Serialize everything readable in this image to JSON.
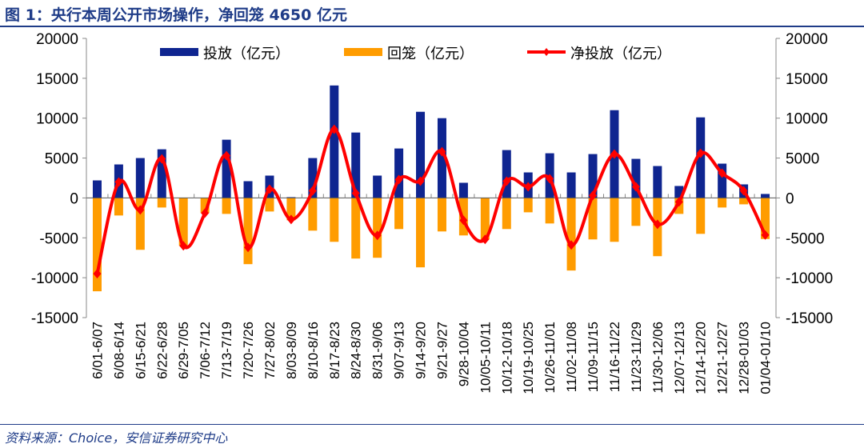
{
  "title": "图 1：央行本周公开市场操作，净回笼 4650 亿元",
  "source": "资料来源：Choice，安信证券研究中心",
  "colors": {
    "issuance": "#0f2590",
    "withdrawal": "#ff9c00",
    "net": "#ff0000",
    "title": "#1f3c88"
  },
  "chart_data": {
    "type": "bar",
    "title": "图 1：央行本周公开市场操作，净回笼 4650 亿元",
    "categories": [
      "6/01-6/07",
      "6/08-6/14",
      "6/15-6/21",
      "6/22-6/28",
      "6/29-7/05",
      "7/06-7/12",
      "7/13-7/19",
      "7/20-7/26",
      "7/27-8/02",
      "8/03-8/09",
      "8/10-8/16",
      "8/17-8/23",
      "8/24-8/30",
      "8/31-9/06",
      "9/07-9/13",
      "9/14-9/20",
      "9/21-9/27",
      "9/28-10/04",
      "10/05-10/11",
      "10/12-10/18",
      "10/19-10/25",
      "10/26-11/01",
      "11/02-11/08",
      "11/09-11/15",
      "11/16-11/22",
      "11/23-11/29",
      "11/30-12/06",
      "12/07-12/13",
      "12/14-12/20",
      "12/21-12/27",
      "12/28-01/03",
      "01/04-01/10"
    ],
    "series": [
      {
        "name": "投放（亿元）",
        "type": "bar",
        "values": [
          2200,
          4200,
          5000,
          6100,
          0,
          0,
          7300,
          2100,
          2800,
          100,
          5000,
          14100,
          8200,
          2800,
          6200,
          10800,
          10000,
          1900,
          0,
          6000,
          3200,
          5600,
          3200,
          5500,
          11000,
          4900,
          4000,
          1500,
          10100,
          4300,
          1700,
          500
        ]
      },
      {
        "name": "回笼（亿元）",
        "type": "bar",
        "values": [
          -11700,
          -2200,
          -6500,
          -1200,
          -6000,
          -1900,
          -2000,
          -8300,
          -1700,
          -2800,
          -4100,
          -5500,
          -7600,
          -7500,
          -3900,
          -8700,
          -4200,
          -4700,
          -5200,
          -3900,
          -1800,
          -3200,
          -9100,
          -5200,
          -5500,
          -3500,
          -7300,
          -2000,
          -4500,
          -1200,
          -800,
          -5150
        ]
      },
      {
        "name": "净投放（亿元）",
        "type": "line",
        "values": [
          -9500,
          2000,
          -1500,
          4900,
          -6000,
          -1900,
          5300,
          -6200,
          1100,
          -2700,
          900,
          8600,
          600,
          -4700,
          2300,
          2100,
          5800,
          -2800,
          -5200,
          2100,
          1400,
          2400,
          -5900,
          300,
          5500,
          1400,
          -3300,
          -500,
          5600,
          3100,
          900,
          -4650
        ]
      }
    ],
    "ylim": [
      -15000,
      20000
    ],
    "yticks": [
      20000,
      15000,
      10000,
      5000,
      0,
      -5000,
      -10000,
      -15000
    ],
    "y2ticks": [
      20000,
      15000,
      10000,
      5000,
      0,
      -5000,
      -10000,
      -15000
    ],
    "legend": "top-center",
    "grid": false
  }
}
